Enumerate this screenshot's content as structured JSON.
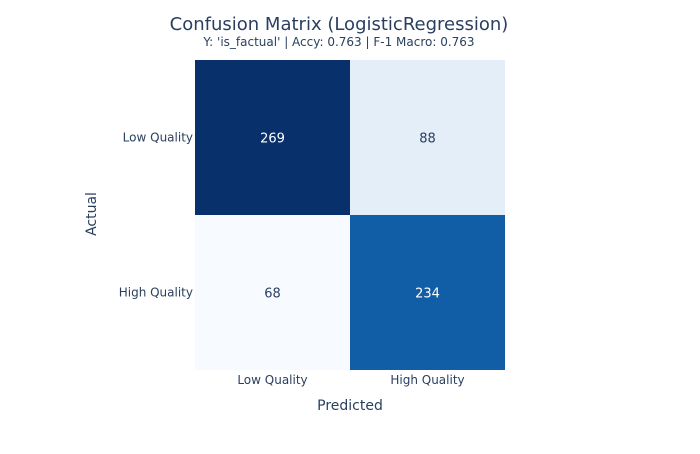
{
  "chart_data": {
    "type": "heatmap",
    "title": "Confusion Matrix (LogisticRegression)",
    "subtitle": "Y: 'is_factual' | Accy: 0.763 | F-1 Macro: 0.763",
    "xlabel": "Predicted",
    "ylabel": "Actual",
    "x_categories": [
      "Low Quality",
      "High Quality"
    ],
    "y_categories": [
      "Low Quality",
      "High Quality"
    ],
    "values": [
      [
        269,
        88
      ],
      [
        68,
        234
      ]
    ],
    "colorscale": "Blues",
    "grid": false,
    "legend": "none"
  },
  "colors": {
    "text": "#2a3f5f",
    "light_text": "#2a3f5f",
    "dark_text": "#ffffff"
  }
}
